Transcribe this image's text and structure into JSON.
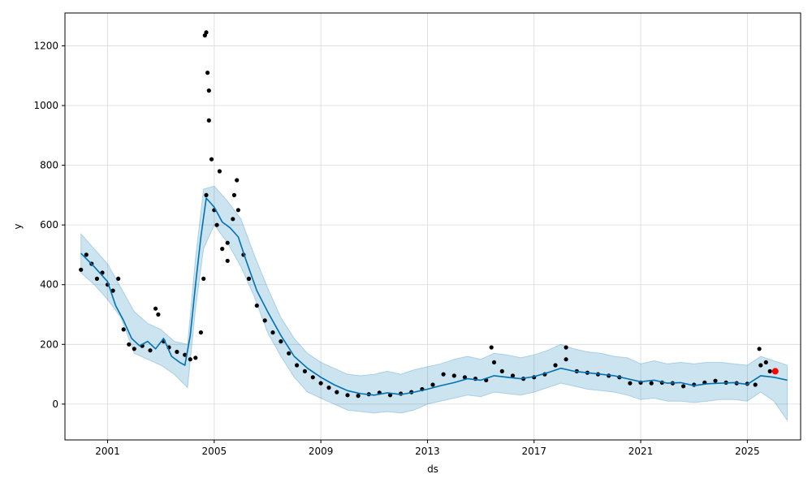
{
  "chart_data": {
    "type": "line",
    "title": "",
    "xlabel": "ds",
    "ylabel": "y",
    "xlim": [
      1999.4,
      2027.0
    ],
    "ylim": [
      -120,
      1310
    ],
    "grid": true,
    "legend": "none",
    "x_ticks": [
      {
        "value": 2001,
        "label": "2001"
      },
      {
        "value": 2005,
        "label": "2005"
      },
      {
        "value": 2009,
        "label": "2009"
      },
      {
        "value": 2013,
        "label": "2013"
      },
      {
        "value": 2017,
        "label": "2017"
      },
      {
        "value": 2021,
        "label": "2021"
      },
      {
        "value": 2025,
        "label": "2025"
      }
    ],
    "y_ticks": [
      {
        "value": 0,
        "label": "0"
      },
      {
        "value": 200,
        "label": "200"
      },
      {
        "value": 400,
        "label": "400"
      },
      {
        "value": 600,
        "label": "600"
      },
      {
        "value": 800,
        "label": "800"
      },
      {
        "value": 1000,
        "label": "1000"
      },
      {
        "value": 1200,
        "label": "1200"
      }
    ],
    "series": [
      {
        "kind": "observed",
        "color": "#000000",
        "x": [
          2000.0,
          2000.2,
          2000.4,
          2000.6,
          2000.8,
          2001.0,
          2001.2,
          2001.4,
          2001.6,
          2001.8,
          2002.0,
          2002.3,
          2002.6,
          2002.9,
          2003.1,
          2003.3,
          2003.6,
          2003.9,
          2004.1,
          2004.3,
          2004.5,
          2004.6,
          2004.7,
          2004.8,
          2004.9,
          2005.0,
          2005.1,
          2005.3,
          2005.5,
          2005.7,
          2005.9,
          2006.1,
          2006.3,
          2006.6,
          2006.9,
          2007.2,
          2007.5,
          2007.8,
          2008.1,
          2008.4,
          2008.7,
          2009.0,
          2009.3,
          2009.6,
          2010.0,
          2010.4,
          2010.8,
          2011.2,
          2011.6,
          2012.0,
          2012.4,
          2012.8,
          2013.2,
          2013.6,
          2014.0,
          2014.4,
          2014.8,
          2015.2,
          2015.5,
          2015.8,
          2016.2,
          2016.6,
          2017.0,
          2017.4,
          2017.8,
          2018.2,
          2018.6,
          2019.0,
          2019.4,
          2019.8,
          2020.2,
          2020.6,
          2021.0,
          2021.4,
          2021.8,
          2022.2,
          2022.6,
          2023.0,
          2023.4,
          2023.8,
          2024.2,
          2024.6,
          2025.0,
          2025.3,
          2025.5,
          2025.7,
          2025.85
        ],
        "y": [
          450,
          500,
          470,
          420,
          440,
          400,
          380,
          420,
          250,
          200,
          185,
          195,
          180,
          300,
          210,
          190,
          175,
          165,
          150,
          155,
          240,
          420,
          700,
          950,
          820,
          650,
          600,
          520,
          480,
          620,
          650,
          500,
          420,
          330,
          280,
          240,
          210,
          170,
          130,
          110,
          90,
          70,
          55,
          40,
          30,
          28,
          33,
          38,
          30,
          35,
          40,
          50,
          65,
          100,
          95,
          90,
          85,
          80,
          140,
          110,
          95,
          85,
          90,
          100,
          130,
          150,
          110,
          105,
          100,
          95,
          90,
          70,
          72,
          70,
          72,
          70,
          60,
          65,
          72,
          78,
          72,
          70,
          68,
          65,
          130,
          140,
          110
        ]
      },
      {
        "kind": "observed",
        "color": "#000000",
        "x": [
          2004.65,
          2004.7,
          2004.75,
          2004.8,
          2005.2,
          2005.5,
          2005.75,
          2005.85,
          2002.8,
          2015.4,
          2018.2,
          2025.45
        ],
        "y": [
          1235,
          1245,
          1110,
          1050,
          780,
          540,
          700,
          750,
          320,
          190,
          190,
          185
        ]
      },
      {
        "kind": "trend",
        "color": "#0072B2",
        "x": [
          2000.0,
          2000.5,
          2001.0,
          2001.3,
          2001.6,
          2001.9,
          2002.2,
          2002.5,
          2002.8,
          2003.1,
          2003.4,
          2003.7,
          2003.9,
          2004.1,
          2004.3,
          2004.5,
          2004.7,
          2005.0,
          2005.3,
          2005.6,
          2005.9,
          2006.2,
          2006.6,
          2007.0,
          2007.5,
          2008.0,
          2008.5,
          2009.0,
          2009.5,
          2010.0,
          2010.5,
          2011.0,
          2011.5,
          2012.0,
          2012.5,
          2013.0,
          2013.5,
          2014.0,
          2014.5,
          2015.0,
          2015.5,
          2016.0,
          2016.5,
          2017.0,
          2017.5,
          2018.0,
          2018.5,
          2019.0,
          2019.5,
          2020.0,
          2020.5,
          2021.0,
          2021.5,
          2022.0,
          2022.5,
          2023.0,
          2023.5,
          2024.0,
          2024.5,
          2025.0,
          2025.5,
          2026.0,
          2026.5
        ],
        "y": [
          505,
          460,
          410,
          330,
          280,
          220,
          195,
          210,
          185,
          220,
          160,
          140,
          130,
          230,
          400,
          560,
          690,
          660,
          610,
          590,
          560,
          480,
          380,
          310,
          230,
          160,
          120,
          90,
          65,
          45,
          35,
          30,
          38,
          32,
          40,
          50,
          62,
          72,
          85,
          80,
          95,
          90,
          85,
          92,
          105,
          120,
          110,
          105,
          100,
          95,
          85,
          75,
          80,
          70,
          72,
          62,
          68,
          70,
          72,
          66,
          95,
          90,
          80
        ]
      },
      {
        "kind": "forecast",
        "color": "#ff0000",
        "x": [
          2026.05
        ],
        "y": [
          110
        ]
      }
    ],
    "uncertainty_band": {
      "color": "#0072B2",
      "x": [
        2000.0,
        2000.5,
        2001.0,
        2001.5,
        2002.0,
        2002.5,
        2003.0,
        2003.5,
        2004.0,
        2004.3,
        2004.6,
        2005.0,
        2005.5,
        2006.0,
        2006.5,
        2007.0,
        2007.5,
        2008.0,
        2008.5,
        2009.0,
        2009.5,
        2010.0,
        2010.5,
        2011.0,
        2011.5,
        2012.0,
        2012.5,
        2013.0,
        2013.5,
        2014.0,
        2014.5,
        2015.0,
        2015.5,
        2016.0,
        2016.5,
        2017.0,
        2017.5,
        2018.0,
        2018.5,
        2019.0,
        2019.5,
        2020.0,
        2020.5,
        2021.0,
        2021.5,
        2022.0,
        2022.5,
        2023.0,
        2023.5,
        2024.0,
        2024.5,
        2025.0,
        2025.5,
        2026.0,
        2026.5
      ],
      "lower": [
        440,
        400,
        350,
        290,
        170,
        150,
        130,
        100,
        55,
        320,
        520,
        600,
        540,
        460,
        360,
        240,
        160,
        90,
        40,
        20,
        0,
        -20,
        -25,
        -30,
        -25,
        -30,
        -20,
        0,
        10,
        20,
        30,
        25,
        40,
        35,
        30,
        40,
        55,
        70,
        60,
        50,
        45,
        40,
        30,
        15,
        20,
        10,
        10,
        5,
        10,
        15,
        15,
        10,
        40,
        10,
        -55
      ],
      "upper": [
        570,
        520,
        470,
        390,
        310,
        270,
        250,
        210,
        200,
        490,
        720,
        730,
        680,
        620,
        500,
        390,
        290,
        220,
        170,
        140,
        120,
        100,
        95,
        100,
        110,
        100,
        115,
        125,
        135,
        150,
        160,
        150,
        170,
        165,
        155,
        165,
        180,
        200,
        185,
        175,
        170,
        160,
        155,
        135,
        145,
        135,
        140,
        135,
        140,
        140,
        135,
        130,
        160,
        145,
        130
      ]
    }
  }
}
